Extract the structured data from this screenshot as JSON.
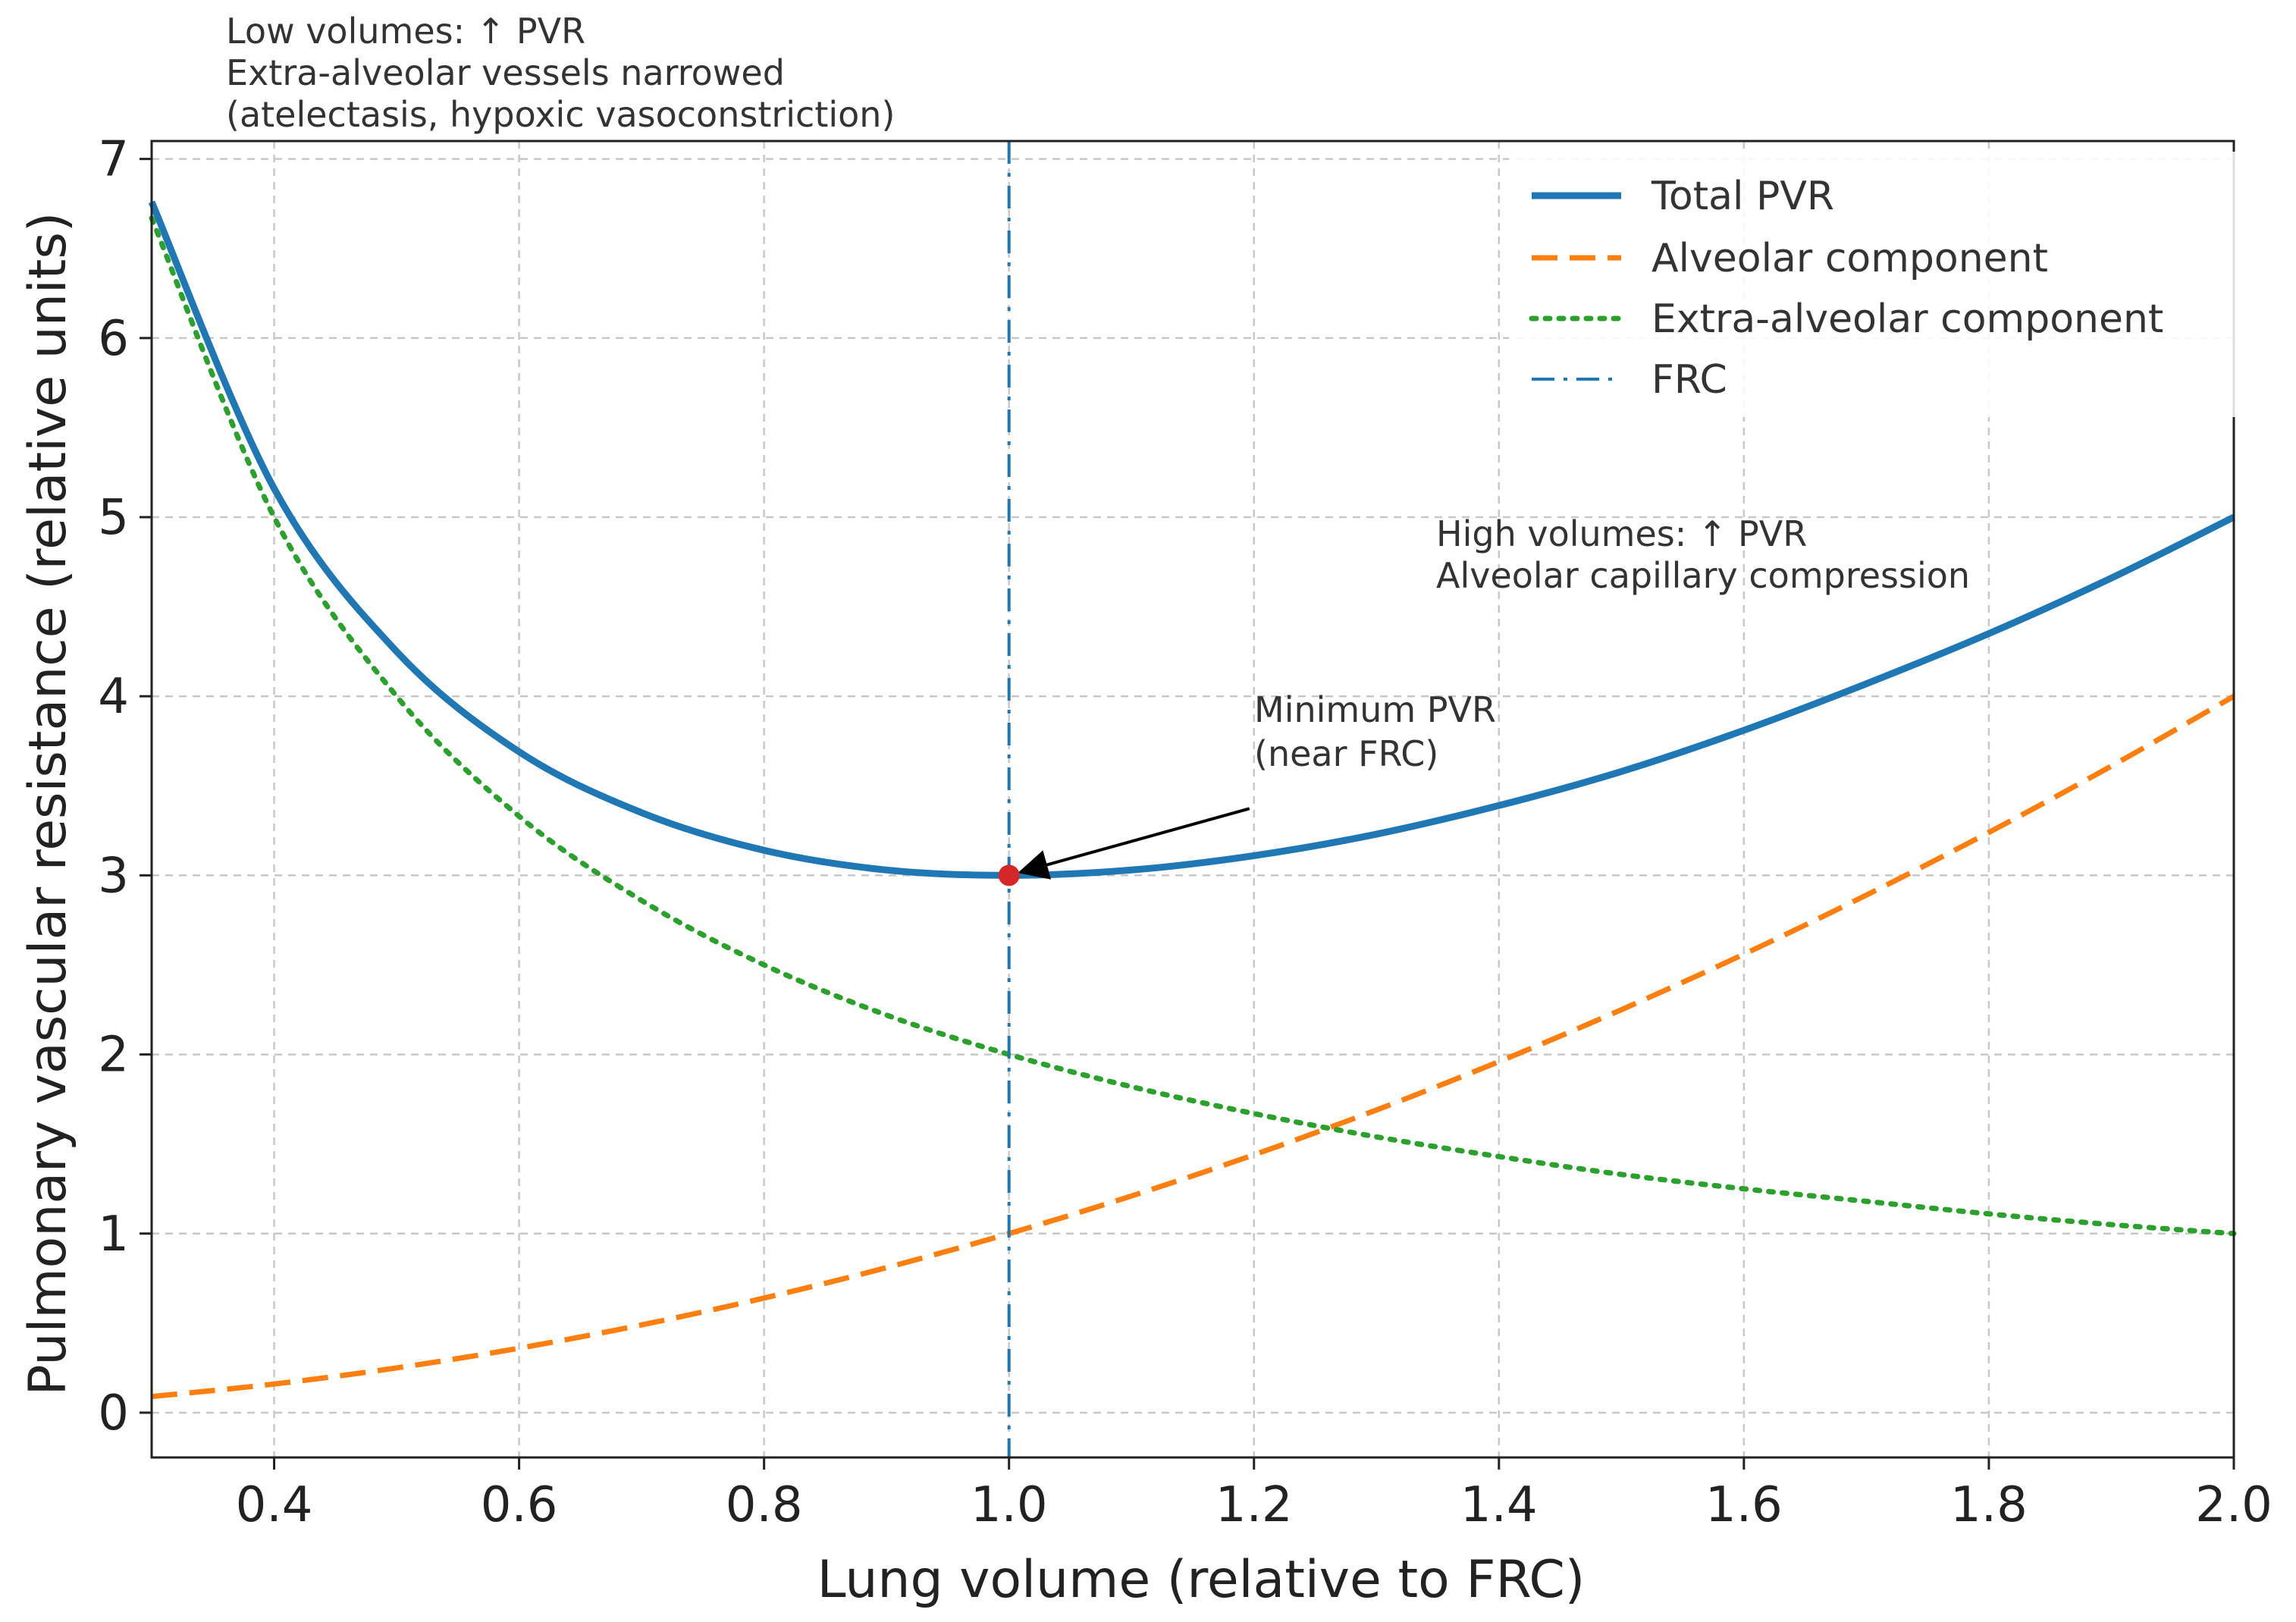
{
  "chart_data": {
    "type": "line",
    "title": "",
    "xlabel": "Lung volume (relative to FRC)",
    "ylabel": "Pulmonary vascular resistance (relative units)",
    "xlim": [
      0.3,
      2.0
    ],
    "ylim": [
      -0.25,
      7.1
    ],
    "xticks": [
      0.4,
      0.6,
      0.8,
      1.0,
      1.2,
      1.4,
      1.6,
      1.8,
      2.0
    ],
    "xtick_labels": [
      "0.4",
      "0.6",
      "0.8",
      "1.0",
      "1.2",
      "1.4",
      "1.6",
      "1.8",
      "2.0"
    ],
    "yticks": [
      0,
      1,
      2,
      3,
      4,
      5,
      6,
      7
    ],
    "ytick_labels": [
      "0",
      "1",
      "2",
      "3",
      "4",
      "5",
      "6",
      "7"
    ],
    "grid": true,
    "legend_position": "top-right",
    "series": [
      {
        "name": "Total PVR",
        "color": "#1f77b4",
        "style": "solid",
        "x": [
          0.3,
          0.4,
          0.5,
          0.6,
          0.7,
          0.8,
          0.9,
          1.0,
          1.1,
          1.2,
          1.3,
          1.4,
          1.5,
          1.6,
          1.7,
          1.8,
          1.9,
          2.0
        ],
        "y": [
          6.76,
          5.16,
          4.25,
          3.69,
          3.35,
          3.14,
          3.03,
          3.0,
          3.03,
          3.11,
          3.23,
          3.39,
          3.58,
          3.81,
          4.07,
          4.35,
          4.66,
          5.0
        ]
      },
      {
        "name": "Alveolar component",
        "color": "#ff7f0e",
        "style": "dashed",
        "x": [
          0.3,
          0.4,
          0.5,
          0.6,
          0.7,
          0.8,
          0.9,
          1.0,
          1.1,
          1.2,
          1.3,
          1.4,
          1.5,
          1.6,
          1.7,
          1.8,
          1.9,
          2.0
        ],
        "y": [
          0.09,
          0.16,
          0.25,
          0.36,
          0.49,
          0.64,
          0.81,
          1.0,
          1.21,
          1.44,
          1.69,
          1.96,
          2.25,
          2.56,
          2.89,
          3.24,
          3.61,
          4.0
        ]
      },
      {
        "name": "Extra-alveolar component",
        "color": "#2ca02c",
        "style": "dotted",
        "x": [
          0.3,
          0.4,
          0.5,
          0.6,
          0.7,
          0.8,
          0.9,
          1.0,
          1.1,
          1.2,
          1.3,
          1.4,
          1.5,
          1.6,
          1.7,
          1.8,
          1.9,
          2.0
        ],
        "y": [
          6.67,
          5.0,
          4.0,
          3.33,
          2.86,
          2.5,
          2.22,
          2.0,
          1.82,
          1.67,
          1.54,
          1.43,
          1.33,
          1.25,
          1.18,
          1.11,
          1.05,
          1.0
        ]
      }
    ],
    "vline": {
      "name": "FRC",
      "x": 1.0,
      "color": "#1f77b4",
      "style": "dash-dot"
    },
    "marker": {
      "x": 1.0,
      "y": 3.0,
      "color": "#d62728"
    },
    "annotations": [
      {
        "id": "low",
        "lines": [
          "Low volumes: ↑ PVR",
          "Extra-alveolar vessels narrowed",
          "(atelectasis, hypoxic vasoconstriction)"
        ]
      },
      {
        "id": "high",
        "lines": [
          "High volumes: ↑ PVR",
          "Alveolar capillary compression"
        ]
      },
      {
        "id": "min",
        "lines": [
          "Minimum PVR",
          "(near FRC)"
        ],
        "arrow_to": {
          "x": 1.0,
          "y": 3.0
        },
        "arrow_from": {
          "x": 1.2,
          "y": 3.5
        }
      }
    ],
    "legend": [
      "Total PVR",
      "Alveolar component",
      "Extra-alveolar component",
      "FRC"
    ]
  }
}
